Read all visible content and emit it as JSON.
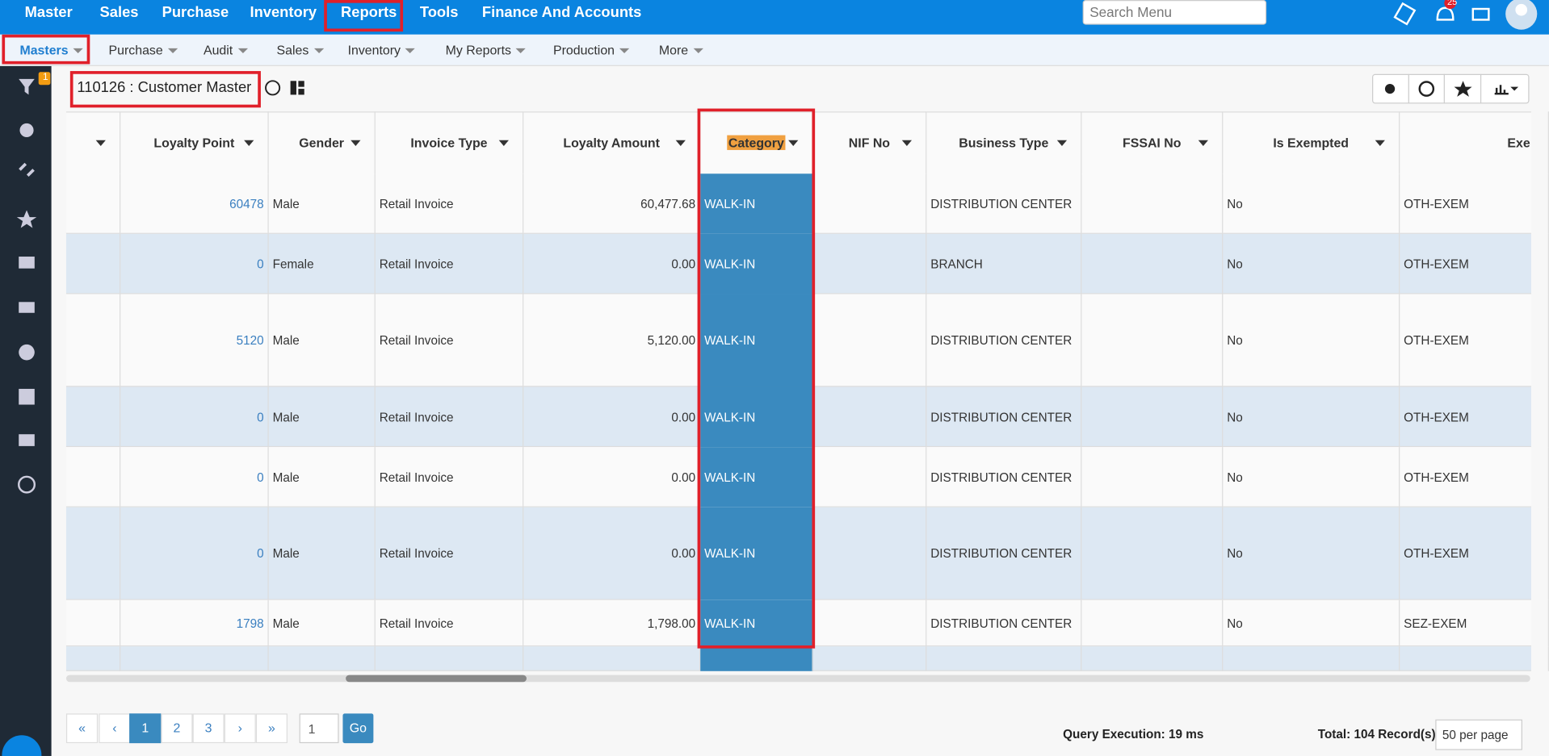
{
  "top_nav": [
    "Master",
    "Sales",
    "Purchase",
    "Inventory",
    "Reports",
    "Tools",
    "Finance And Accounts"
  ],
  "search_placeholder": "Search Menu",
  "notification_count": "25",
  "sub_nav": [
    "Masters",
    "Purchase",
    "Audit",
    "Sales",
    "Inventory",
    "My Reports",
    "Production",
    "More"
  ],
  "filter_count": "1",
  "page_title": "110126 : Customer Master",
  "table": {
    "columns": [
      "Loyalty Point",
      "Gender",
      "Invoice Type",
      "Loyalty Amount",
      "Category",
      "NIF No",
      "Business Type",
      "FSSAI No",
      "Is Exempted",
      "Exe"
    ],
    "rows": [
      [
        "60478",
        "Male",
        "Retail Invoice",
        "60,477.68",
        "WALK-IN",
        "DISTRIBUTION CENTER",
        "No",
        "OTH-EXEM"
      ],
      [
        "0",
        "Female",
        "Retail Invoice",
        "0.00",
        "WALK-IN",
        "BRANCH",
        "No",
        "OTH-EXEM"
      ],
      [
        "5120",
        "Male",
        "Retail Invoice",
        "5,120.00",
        "WALK-IN",
        "DISTRIBUTION CENTER",
        "No",
        "OTH-EXEM"
      ],
      [
        "0",
        "Male",
        "Retail Invoice",
        "0.00",
        "WALK-IN",
        "DISTRIBUTION CENTER",
        "No",
        "OTH-EXEM"
      ],
      [
        "0",
        "Male",
        "Retail Invoice",
        "0.00",
        "WALK-IN",
        "DISTRIBUTION CENTER",
        "No",
        "OTH-EXEM"
      ],
      [
        "0",
        "Male",
        "Retail Invoice",
        "0.00",
        "WALK-IN",
        "DISTRIBUTION CENTER",
        "No",
        "OTH-EXEM"
      ],
      [
        "1798",
        "Male",
        "Retail Invoice",
        "1,798.00",
        "WALK-IN",
        "DISTRIBUTION CENTER",
        "No",
        "SEZ-EXEM"
      ]
    ]
  },
  "pagination": {
    "buttons": [
      "«",
      "‹",
      "1",
      "2",
      "3",
      "›",
      "»"
    ],
    "page_input": "1",
    "go": "Go"
  },
  "query_execution": "Query Execution: 19 ms",
  "total": "Total: 104 Record(s)",
  "per_page": "50 per page"
}
